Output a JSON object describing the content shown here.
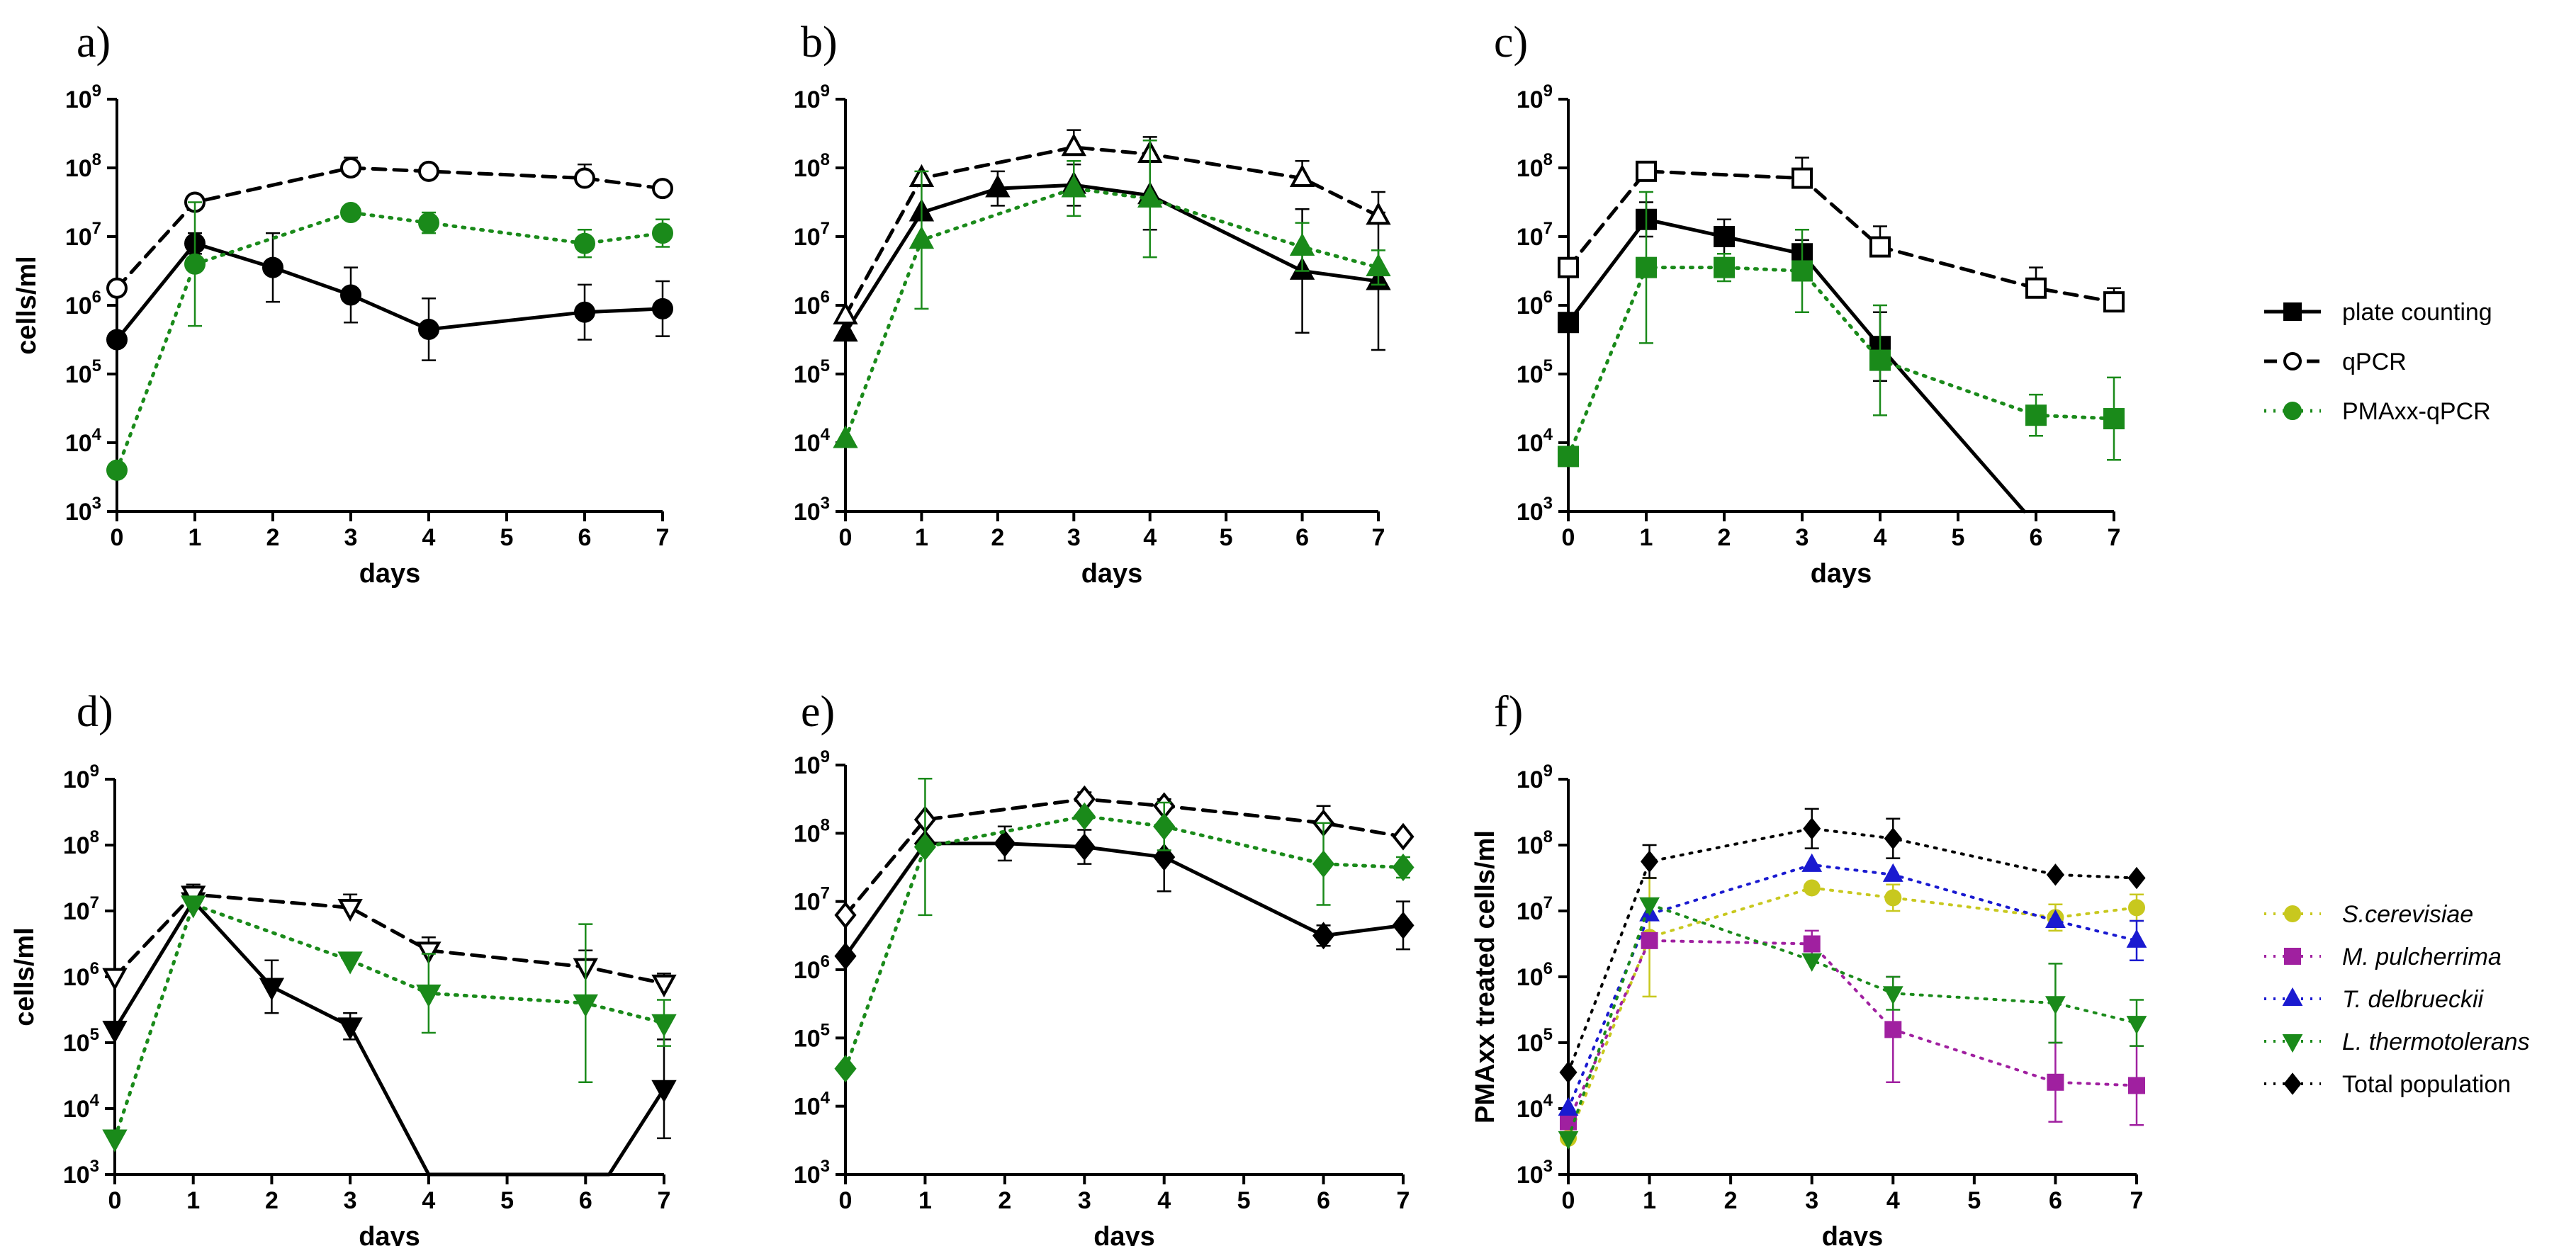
{
  "legend_main": {
    "items": [
      {
        "label": "plate counting",
        "style": "solid",
        "color": "#000000",
        "marker": "square",
        "fill": true
      },
      {
        "label": "qPCR",
        "style": "dashed",
        "color": "#000000",
        "marker": "circle",
        "fill": false
      },
      {
        "label": "PMAxx-qPCR",
        "style": "dotted",
        "color": "#1a8a1a",
        "marker": "circle",
        "fill": true
      }
    ]
  },
  "legend_species": {
    "items": [
      {
        "label": "S.cerevisiae",
        "color": "#c8c81e",
        "marker": "circle",
        "italic": true
      },
      {
        "label": "M. pulcherrima",
        "color": "#a020a0",
        "marker": "square",
        "italic": true
      },
      {
        "label": "T. delbrueckii",
        "color": "#1a1ad0",
        "marker": "triangle",
        "italic": true
      },
      {
        "label": "L. thermotolerans",
        "color": "#1a8a1a",
        "marker": "triangle-down",
        "italic": true
      },
      {
        "label": "Total population",
        "color": "#000000",
        "marker": "diamond",
        "italic": false
      }
    ]
  },
  "colors": {
    "plate": "#000000",
    "qpcr": "#000000",
    "pmaxx": "#1a8a1a"
  },
  "chart_data": [
    {
      "id": "a",
      "type": "line",
      "panel_label": "a)",
      "xlabel": "days",
      "ylabel": "cells/ml",
      "xlim": [
        0,
        7
      ],
      "ylim_log10": [
        3,
        9
      ],
      "xticks": [
        "0",
        "1",
        "2",
        "3",
        "4",
        "5",
        "6",
        "7"
      ],
      "marker": "circle",
      "series": [
        {
          "name": "plate counting",
          "style": "solid",
          "x": [
            0,
            1,
            2,
            3,
            4,
            6,
            7
          ],
          "log10": [
            5.5,
            6.9,
            6.55,
            6.15,
            5.65,
            5.9,
            5.95
          ],
          "err": [
            0,
            0.15,
            0.5,
            0.4,
            0.45,
            0.4,
            0.4
          ]
        },
        {
          "name": "qPCR",
          "style": "dashed",
          "x": [
            0,
            1,
            3,
            4,
            6,
            7
          ],
          "log10": [
            6.25,
            7.5,
            8.0,
            7.95,
            7.85,
            7.7
          ],
          "err": [
            0,
            0,
            0.15,
            0,
            0.2,
            0
          ]
        },
        {
          "name": "PMAxx-qPCR",
          "style": "dotted",
          "x": [
            0,
            1,
            3,
            4,
            6,
            7
          ],
          "log10": [
            3.6,
            6.6,
            7.35,
            7.2,
            6.9,
            7.05
          ],
          "err": [
            0,
            0.9,
            0,
            0.15,
            0.2,
            0.2
          ]
        }
      ]
    },
    {
      "id": "b",
      "type": "line",
      "panel_label": "b)",
      "xlabel": "days",
      "ylabel": "",
      "xlim": [
        0,
        7
      ],
      "ylim_log10": [
        3,
        9
      ],
      "xticks": [
        "0",
        "1",
        "2",
        "3",
        "4",
        "5",
        "6",
        "7"
      ],
      "marker": "triangle",
      "series": [
        {
          "name": "plate counting",
          "style": "solid",
          "x": [
            0,
            1,
            2,
            3,
            4,
            6,
            7
          ],
          "log10": [
            5.6,
            7.35,
            7.7,
            7.75,
            7.6,
            6.5,
            6.35
          ],
          "err": [
            0,
            0,
            0.25,
            0.3,
            0.5,
            0.9,
            1.0
          ]
        },
        {
          "name": "qPCR",
          "style": "dashed",
          "x": [
            0,
            1,
            3,
            4,
            6,
            7
          ],
          "log10": [
            5.85,
            7.85,
            8.3,
            8.2,
            7.85,
            7.3
          ],
          "err": [
            0,
            0,
            0.25,
            0.25,
            0.25,
            0.35
          ]
        },
        {
          "name": "PMAxx-qPCR",
          "style": "dotted",
          "x": [
            0,
            1,
            3,
            4,
            6,
            7
          ],
          "log10": [
            4.05,
            6.95,
            7.7,
            7.55,
            6.85,
            6.55
          ],
          "err": [
            0,
            1.0,
            0.4,
            0.85,
            0.35,
            0.25
          ]
        }
      ]
    },
    {
      "id": "c",
      "type": "line",
      "panel_label": "c)",
      "xlabel": "days",
      "ylabel": "",
      "xlim": [
        0,
        7
      ],
      "ylim_log10": [
        3,
        9
      ],
      "xticks": [
        "0",
        "1",
        "2",
        "3",
        "4",
        "5",
        "6",
        "7"
      ],
      "marker": "square",
      "series": [
        {
          "name": "plate counting",
          "style": "solid",
          "x": [
            0,
            1,
            2,
            3,
            4,
            5.85
          ],
          "log10": [
            5.75,
            7.25,
            7.0,
            6.75,
            5.4,
            3.0
          ],
          "err": [
            0,
            0.25,
            0.25,
            0.2,
            0.5,
            0
          ]
        },
        {
          "name": "qPCR",
          "style": "dashed",
          "x": [
            0,
            1,
            3,
            4,
            6,
            7
          ],
          "log10": [
            6.55,
            7.95,
            7.85,
            6.85,
            6.25,
            6.05
          ],
          "err": [
            0,
            0,
            0.3,
            0.3,
            0.3,
            0.2
          ]
        },
        {
          "name": "PMAxx-qPCR",
          "style": "dotted",
          "x": [
            0,
            1,
            2,
            3,
            4,
            6,
            7
          ],
          "log10": [
            3.8,
            6.55,
            6.55,
            6.5,
            5.2,
            4.4,
            4.35
          ],
          "err": [
            0,
            1.1,
            0.2,
            0.6,
            0.8,
            0.3,
            0.6
          ]
        }
      ]
    },
    {
      "id": "d",
      "type": "line",
      "panel_label": "d)",
      "xlabel": "days",
      "ylabel": "cells/ml",
      "xlim": [
        0,
        7
      ],
      "ylim_log10": [
        3,
        9
      ],
      "xticks": [
        "0",
        "1",
        "2",
        "3",
        "4",
        "5",
        "6",
        "7"
      ],
      "marker": "triangle-down",
      "series": [
        {
          "name": "plate counting",
          "style": "solid",
          "x": [
            0,
            1,
            2,
            3,
            4,
            6.3,
            7
          ],
          "log10": [
            5.2,
            7.15,
            5.85,
            5.25,
            3.0,
            3.0,
            4.3
          ],
          "err": [
            0,
            0,
            0.4,
            0.2,
            0,
            0,
            0.75
          ]
        },
        {
          "name": "qPCR",
          "style": "dashed",
          "x": [
            0,
            1,
            3,
            4,
            6,
            7
          ],
          "log10": [
            6.0,
            7.25,
            7.05,
            6.4,
            6.15,
            5.9
          ],
          "err": [
            0,
            0.15,
            0.2,
            0.2,
            0.25,
            0.15
          ]
        },
        {
          "name": "PMAxx-qPCR",
          "style": "dotted",
          "x": [
            0,
            1,
            3,
            4,
            6,
            7
          ],
          "log10": [
            3.55,
            7.1,
            6.25,
            5.75,
            5.6,
            5.3
          ],
          "err": [
            0,
            0,
            0,
            0.6,
            1.2,
            0.35
          ]
        }
      ]
    },
    {
      "id": "e",
      "type": "line",
      "panel_label": "e)",
      "xlabel": "days",
      "ylabel": "",
      "xlim": [
        0,
        7
      ],
      "ylim_log10": [
        3,
        9
      ],
      "xticks": [
        "0",
        "1",
        "2",
        "3",
        "4",
        "5",
        "6",
        "7"
      ],
      "marker": "diamond",
      "series": [
        {
          "name": "plate counting",
          "style": "solid",
          "x": [
            0,
            1,
            2,
            3,
            4,
            6,
            7
          ],
          "log10": [
            6.2,
            7.85,
            7.85,
            7.8,
            7.65,
            6.5,
            6.65
          ],
          "err": [
            0,
            0,
            0.25,
            0.25,
            0.5,
            0.15,
            0.35
          ]
        },
        {
          "name": "qPCR",
          "style": "dashed",
          "x": [
            0,
            1,
            3,
            4,
            6,
            7
          ],
          "log10": [
            6.8,
            8.2,
            8.5,
            8.4,
            8.15,
            7.95
          ],
          "err": [
            0,
            0,
            0.1,
            0.1,
            0.25,
            0
          ]
        },
        {
          "name": "PMAxx-qPCR",
          "style": "dotted",
          "x": [
            0,
            1,
            3,
            4,
            6,
            7
          ],
          "log10": [
            4.55,
            7.8,
            8.25,
            8.1,
            7.55,
            7.5
          ],
          "err": [
            0,
            1.0,
            0,
            0.35,
            0.6,
            0.15
          ]
        }
      ]
    },
    {
      "id": "f",
      "type": "line",
      "panel_label": "f)",
      "xlabel": "days",
      "ylabel": "PMAxx treated cells/ml",
      "xlim": [
        0,
        7
      ],
      "ylim_log10": [
        3,
        9
      ],
      "xticks": [
        "0",
        "1",
        "2",
        "3",
        "4",
        "5",
        "6",
        "7"
      ],
      "series": [
        {
          "name": "S.cerevisiae",
          "marker": "circle",
          "x": [
            0,
            1,
            3,
            4,
            6,
            7
          ],
          "log10": [
            3.55,
            6.6,
            7.35,
            7.2,
            6.9,
            7.05
          ],
          "err": [
            0,
            0.9,
            0,
            0.2,
            0.2,
            0.2
          ]
        },
        {
          "name": "M. pulcherrima",
          "marker": "square",
          "x": [
            0,
            1,
            3,
            4,
            6,
            7
          ],
          "log10": [
            3.8,
            6.55,
            6.5,
            5.2,
            4.4,
            4.35
          ],
          "err": [
            0,
            0,
            0.2,
            0.8,
            0.6,
            0.6
          ]
        },
        {
          "name": "T. delbrueckii",
          "marker": "triangle",
          "x": [
            0,
            1,
            3,
            4,
            6,
            7
          ],
          "log10": [
            4.0,
            6.95,
            7.7,
            7.55,
            6.85,
            6.55
          ],
          "err": [
            0,
            0,
            0,
            0,
            0,
            0.3
          ]
        },
        {
          "name": "L. thermotolerans",
          "marker": "triangle-down",
          "x": [
            0,
            1,
            3,
            4,
            6,
            7
          ],
          "log10": [
            3.55,
            7.1,
            6.25,
            5.75,
            5.6,
            5.3
          ],
          "err": [
            0,
            0,
            0,
            0.25,
            0.6,
            0.35
          ]
        },
        {
          "name": "Total population",
          "marker": "diamond",
          "x": [
            0,
            1,
            3,
            4,
            6,
            7
          ],
          "log10": [
            4.55,
            7.75,
            8.25,
            8.1,
            7.55,
            7.5
          ],
          "err": [
            0,
            0.25,
            0.3,
            0.3,
            0,
            0
          ]
        }
      ]
    }
  ]
}
